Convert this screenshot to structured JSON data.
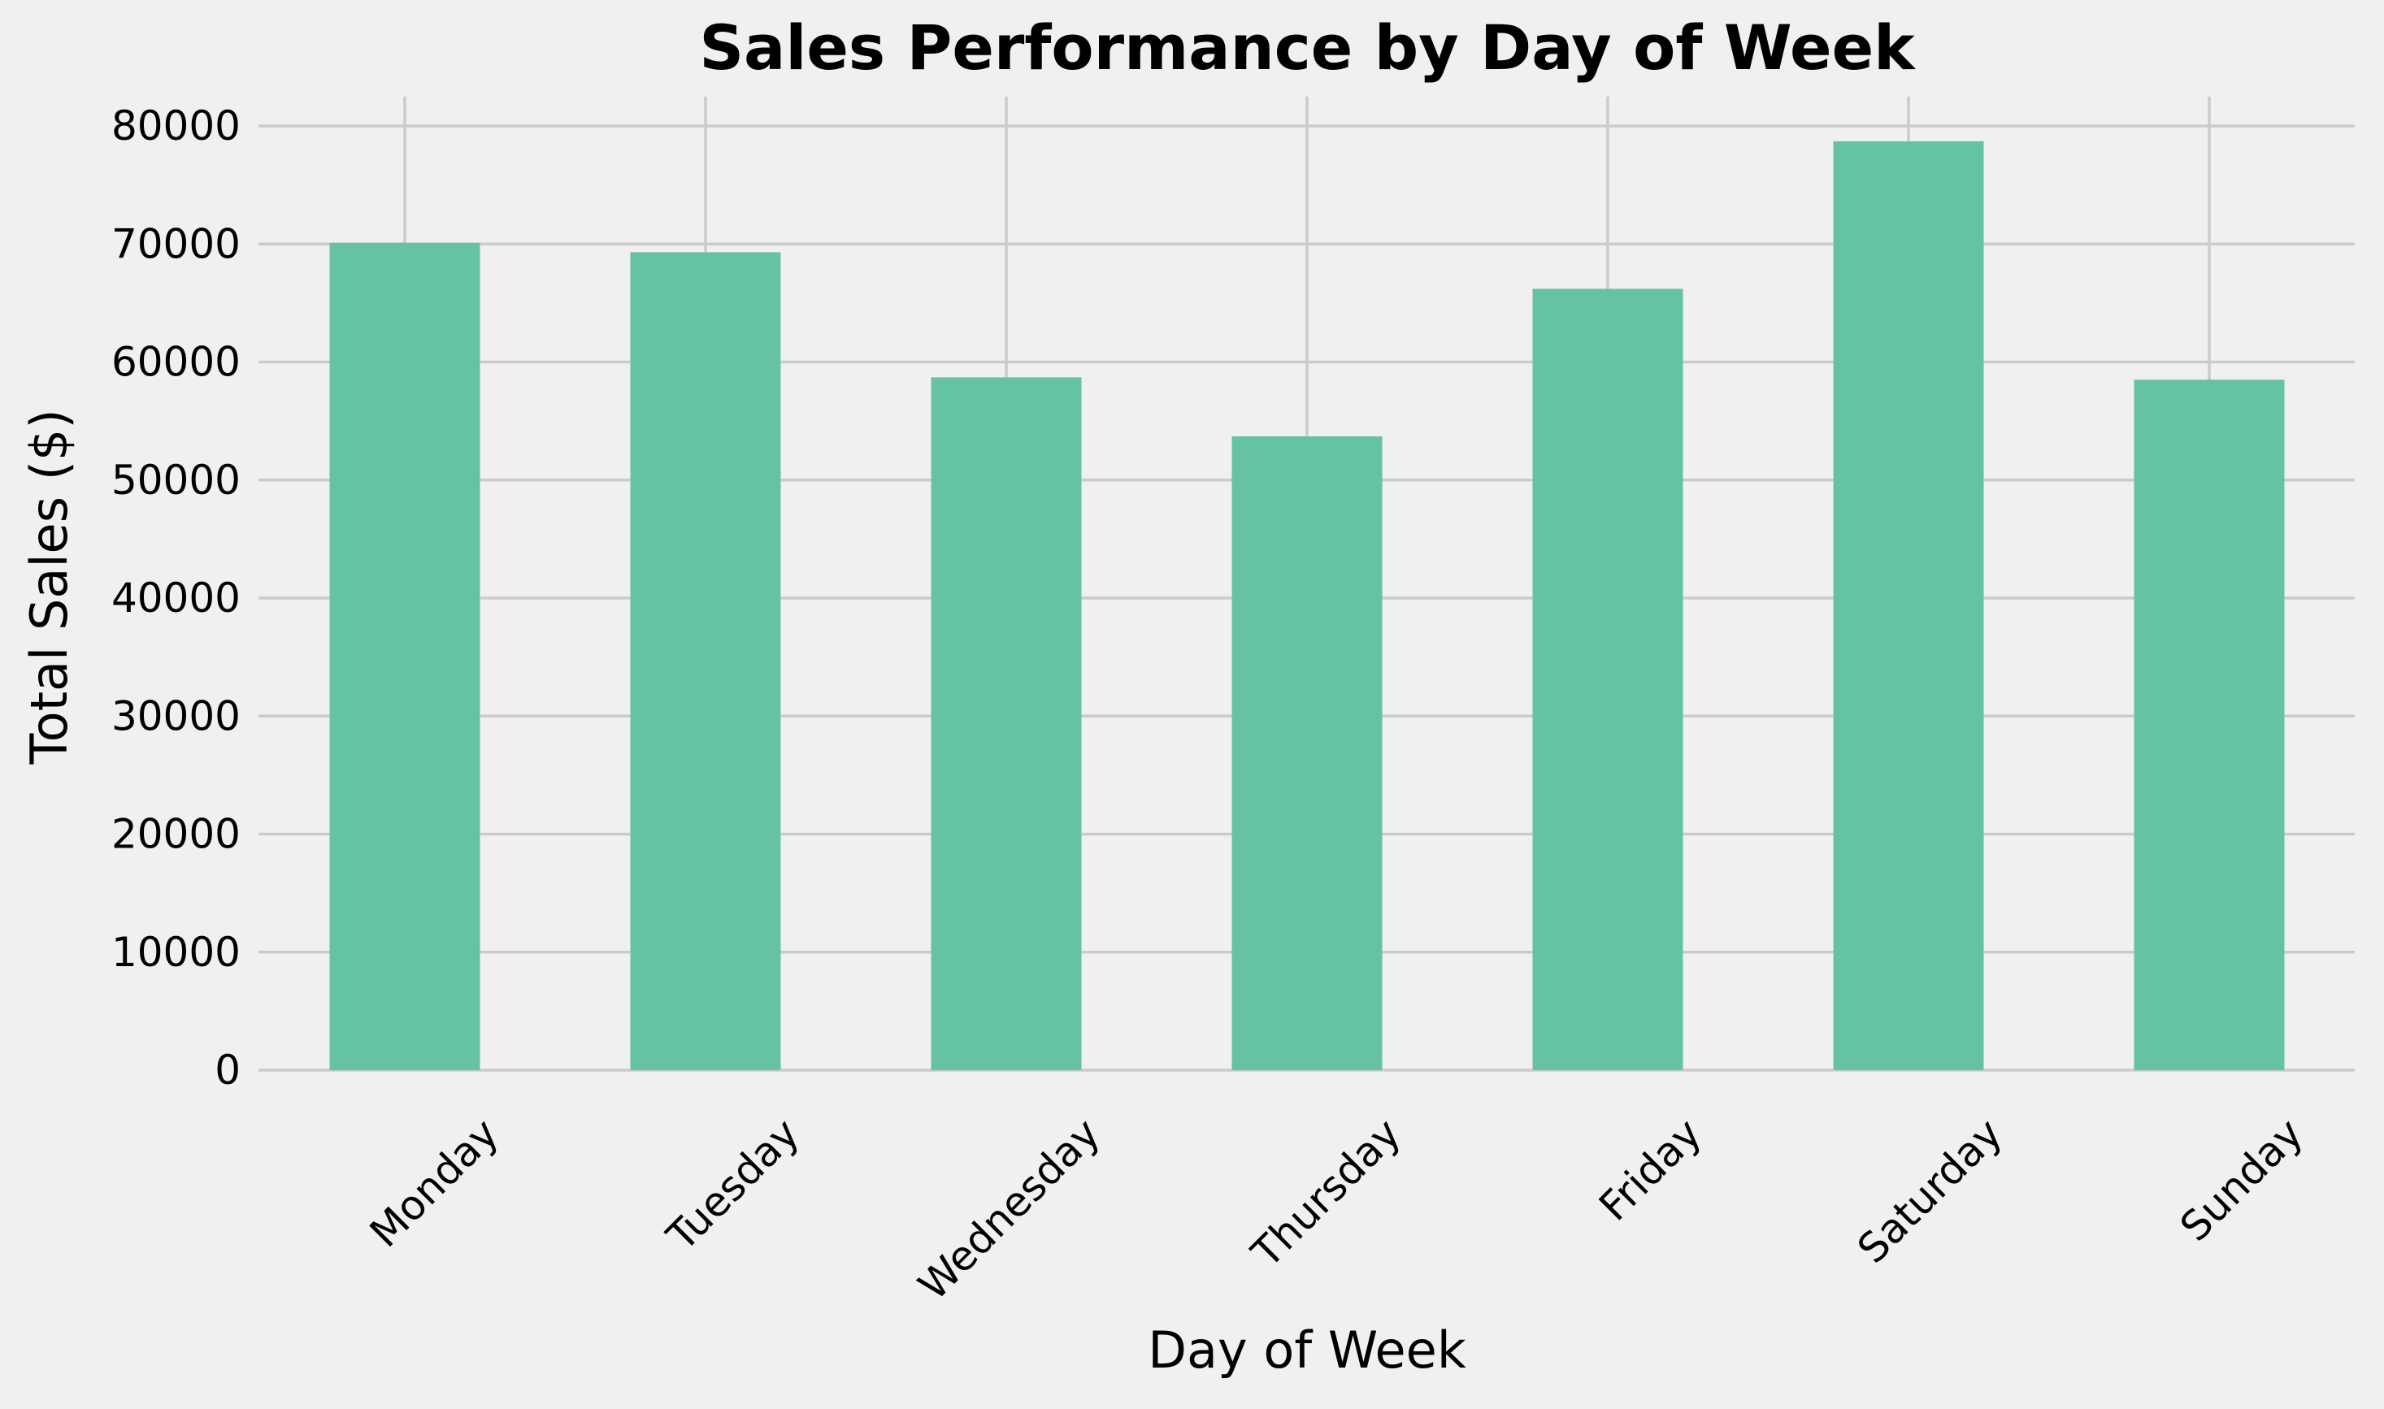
{
  "chart_data": {
    "type": "bar",
    "title": "Sales Performance by Day of Week",
    "xlabel": "Day of Week",
    "ylabel": "Total Sales ($)",
    "categories": [
      "Monday",
      "Tuesday",
      "Wednesday",
      "Thursday",
      "Friday",
      "Saturday",
      "Sunday"
    ],
    "values": [
      70100,
      69300,
      58700,
      53700,
      66200,
      78700,
      58500
    ],
    "ylim": [
      0,
      82500
    ],
    "yticks": [
      0,
      10000,
      20000,
      30000,
      40000,
      50000,
      60000,
      70000,
      80000
    ],
    "ytick_labels": [
      "0",
      "10000",
      "20000",
      "30000",
      "40000",
      "50000",
      "60000",
      "70000",
      "80000"
    ],
    "grid": true,
    "bar_color": "#66c2a5",
    "background_color": "#f0f0f0",
    "grid_color": "#cbcbcb"
  }
}
